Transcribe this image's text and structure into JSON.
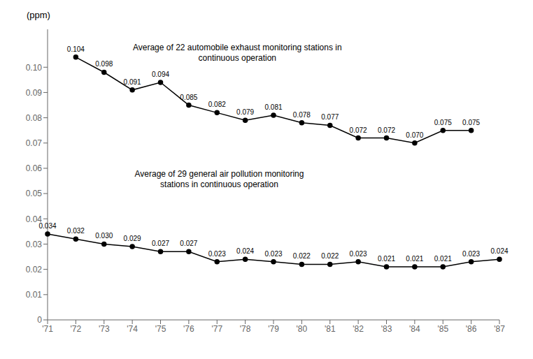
{
  "chart_data": {
    "type": "line",
    "categories": [
      "'71",
      "'72",
      "'73",
      "'74",
      "'75",
      "'76",
      "'77",
      "'78",
      "'79",
      "'80",
      "'81",
      "'82",
      "'83",
      "'84",
      "'85",
      "'86",
      "'87"
    ],
    "series": [
      {
        "color": "#000000",
        "marker": "circle",
        "values": [
          null,
          0.104,
          0.098,
          0.091,
          0.094,
          0.085,
          0.082,
          0.079,
          0.081,
          0.078,
          0.077,
          0.072,
          0.072,
          0.07,
          0.075,
          0.075,
          null
        ],
        "value_labels": [
          null,
          "0.104",
          "0.098",
          "0.091",
          "0.094",
          "0.085",
          "0.082",
          "0.079",
          "0.081",
          "0.078",
          "0.077",
          "0.072",
          "0.072",
          "0.070",
          "0.075",
          "0.075",
          null
        ]
      },
      {
        "color": "#000000",
        "marker": "circle",
        "values": [
          0.034,
          0.032,
          0.03,
          0.029,
          0.027,
          0.027,
          0.023,
          0.024,
          0.023,
          0.022,
          0.022,
          0.023,
          0.021,
          0.021,
          0.021,
          0.023,
          0.024
        ],
        "value_labels": [
          "0.034",
          "0.032",
          "0.030",
          "0.029",
          "0.027",
          "0.027",
          "0.023",
          "0.024",
          "0.023",
          "0.022",
          "0.022",
          "0.023",
          "0.021",
          "0.021",
          "0.021",
          "0.023",
          "0.024"
        ]
      }
    ],
    "annotations": [
      "Average of 22 automobile exhaust monitoring stations in\ncontinuous operation",
      "Average of 29 general air pollution monitoring\nstations in continuous operation"
    ],
    "y_label": "(ppm)",
    "ylim": [
      0,
      0.115
    ],
    "yticks": [
      0,
      0.01,
      0.02,
      0.03,
      0.04,
      0.05,
      0.06,
      0.07,
      0.08,
      0.09,
      {
        "value": 0.1,
        "label": "0.10"
      }
    ],
    "data_labels": true,
    "grid": false
  }
}
